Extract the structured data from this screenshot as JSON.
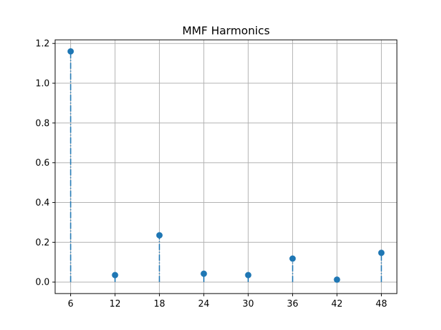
{
  "chart_data": {
    "type": "stem",
    "title": "MMF Harmonics",
    "xlabel": "",
    "ylabel": "",
    "x": [
      6,
      12,
      18,
      24,
      30,
      36,
      42,
      48
    ],
    "y": [
      1.16,
      0.035,
      0.235,
      0.042,
      0.035,
      0.118,
      0.012,
      0.147
    ],
    "xticks": [
      "6",
      "12",
      "18",
      "24",
      "30",
      "36",
      "42",
      "48"
    ],
    "yticks": [
      "0.0",
      "0.2",
      "0.4",
      "0.6",
      "0.8",
      "1.0",
      "1.2"
    ],
    "xlim": [
      3.9,
      50.1
    ],
    "ylim": [
      -0.058,
      1.218
    ],
    "grid": true,
    "color": "#1f77b4",
    "stem_line_style": "dash-dot"
  }
}
